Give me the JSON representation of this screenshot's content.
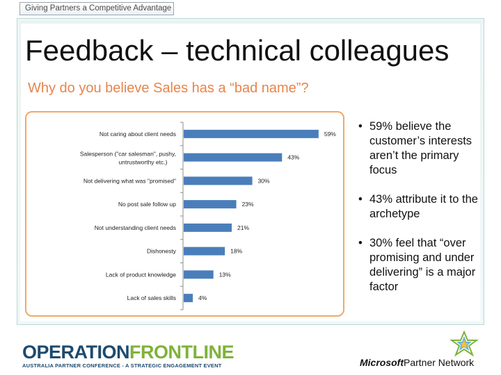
{
  "banner": {
    "text": "Giving Partners a Competitive Advantage"
  },
  "slide": {
    "title": "Feedback – technical colleagues",
    "subtitle": "Why do you believe Sales has a “bad name”?"
  },
  "chart_data": {
    "type": "bar",
    "orientation": "horizontal",
    "categories": [
      "Not caring about client needs",
      "Salesperson (\"car salesman\", pushy, untrustworthy etc.)",
      "Not delivering what was \"promised\"",
      "No post sale follow up",
      "Not understanding client needs",
      "Dishonesty",
      "Lack of product knowledge",
      "Lack of sales skills"
    ],
    "values": [
      59,
      43,
      30,
      23,
      21,
      18,
      13,
      4
    ],
    "value_labels": [
      "59%",
      "43%",
      "30%",
      "23%",
      "21%",
      "18%",
      "13%",
      "4%"
    ],
    "xlim": [
      0,
      70
    ],
    "bar_color": "#4a7ebb",
    "grid": false
  },
  "bullets": [
    "59% believe the customer’s interests aren’t the primary focus",
    "43% attribute it to the archetype",
    "30% feel that “over promising and under delivering” is a major factor"
  ],
  "footer": {
    "logo_left_part1": "OPERATION",
    "logo_left_part2": "FRONTLINE",
    "logo_left_tagline": "AUSTRALIA PARTNER CONFERENCE - A STRATEGIC ENGAGEMENT EVENT",
    "logo_right_brand": "Microsoft",
    "logo_right_text": "Partner Network"
  },
  "colors": {
    "accent": "#e8844a",
    "chart_border": "#f0a868",
    "logo_blue": "#1d4a6e",
    "logo_green": "#7fb23a"
  }
}
